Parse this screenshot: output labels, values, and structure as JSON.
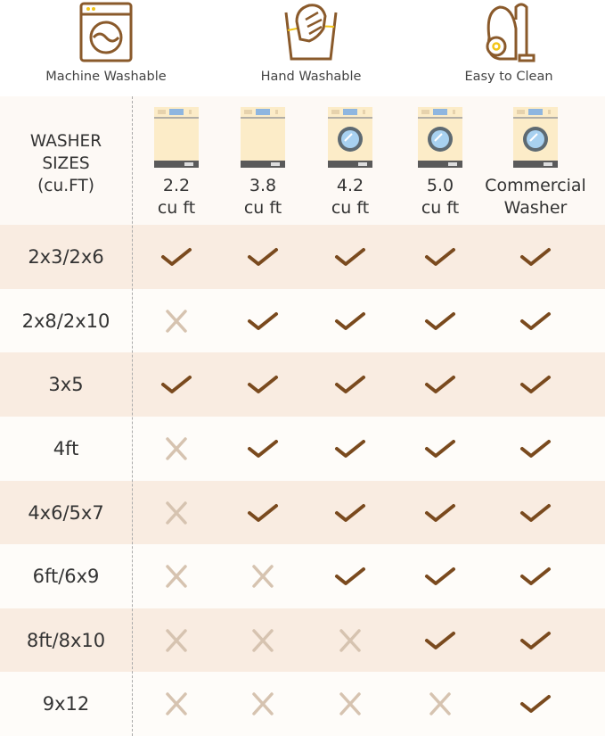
{
  "features": [
    {
      "label": "Machine Washable",
      "icon": "washing-machine-icon"
    },
    {
      "label": "Hand Washable",
      "icon": "hand-wash-icon"
    },
    {
      "label": "Easy to Clean",
      "icon": "vacuum-cleaner-icon"
    }
  ],
  "header": {
    "label_line1": "WASHER",
    "label_line2": "SIZES",
    "label_line3": "(cu.FT)",
    "columns": [
      {
        "line1": "2.2",
        "line2": "cu ft",
        "type": "top-loader"
      },
      {
        "line1": "3.8",
        "line2": "cu ft",
        "type": "top-loader"
      },
      {
        "line1": "4.2",
        "line2": "cu ft",
        "type": "front-loader"
      },
      {
        "line1": "5.0",
        "line2": "cu ft",
        "type": "front-loader"
      },
      {
        "line1": "Commercial",
        "line2": "Washer",
        "type": "front-loader"
      }
    ]
  },
  "rows": [
    {
      "size": "2x3/2x6",
      "fits": [
        true,
        true,
        true,
        true,
        true
      ]
    },
    {
      "size": "2x8/2x10",
      "fits": [
        false,
        true,
        true,
        true,
        true
      ]
    },
    {
      "size": "3x5",
      "fits": [
        true,
        true,
        true,
        true,
        true
      ]
    },
    {
      "size": "4ft",
      "fits": [
        false,
        true,
        true,
        true,
        true
      ]
    },
    {
      "size": "4x6/5x7",
      "fits": [
        false,
        true,
        true,
        true,
        true
      ]
    },
    {
      "size": "6ft/6x9",
      "fits": [
        false,
        false,
        true,
        true,
        true
      ]
    },
    {
      "size": "8ft/8x10",
      "fits": [
        false,
        false,
        false,
        true,
        true
      ]
    },
    {
      "size": "9x12",
      "fits": [
        false,
        false,
        false,
        false,
        true
      ]
    }
  ],
  "colors": {
    "check": "#7a4a1e",
    "cross": "#d6c3b0",
    "row_dark": "#f9ece1",
    "row_light": "#fefcf9",
    "icon_brown": "#8a5a2b",
    "icon_yellow": "#f2c518"
  }
}
